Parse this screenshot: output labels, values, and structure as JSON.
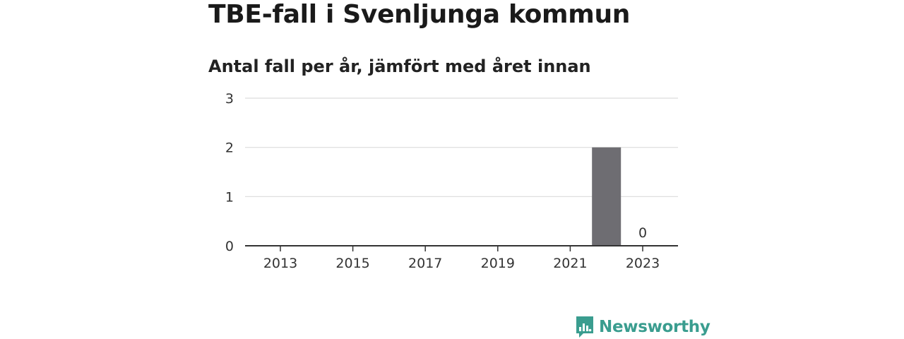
{
  "header": {
    "title": "TBE-fall i Svenljunga kommun",
    "subtitle": "Antal fall per år, jämfört med året innan"
  },
  "chart_data": {
    "type": "bar",
    "categories": [
      "2013",
      "2014",
      "2015",
      "2016",
      "2017",
      "2018",
      "2019",
      "2020",
      "2021",
      "2022",
      "2023"
    ],
    "values": [
      null,
      null,
      null,
      null,
      null,
      null,
      null,
      null,
      null,
      2,
      0
    ],
    "x_tick_labels": [
      "2013",
      "2015",
      "2017",
      "2019",
      "2021",
      "2023"
    ],
    "y_ticks": [
      "0",
      "1",
      "2",
      "3"
    ],
    "ylim": [
      0,
      3
    ],
    "data_labels": [
      {
        "category": "2023",
        "text": "0"
      }
    ],
    "grid": true,
    "bar_color": "#6e6d72",
    "title": "TBE-fall i Svenljunga kommun",
    "subtitle": "Antal fall per år, jämfört med året innan"
  },
  "brand": {
    "name": "Newsworthy",
    "color": "#3a9d8f",
    "icon": "newsworthy-logo-icon"
  }
}
